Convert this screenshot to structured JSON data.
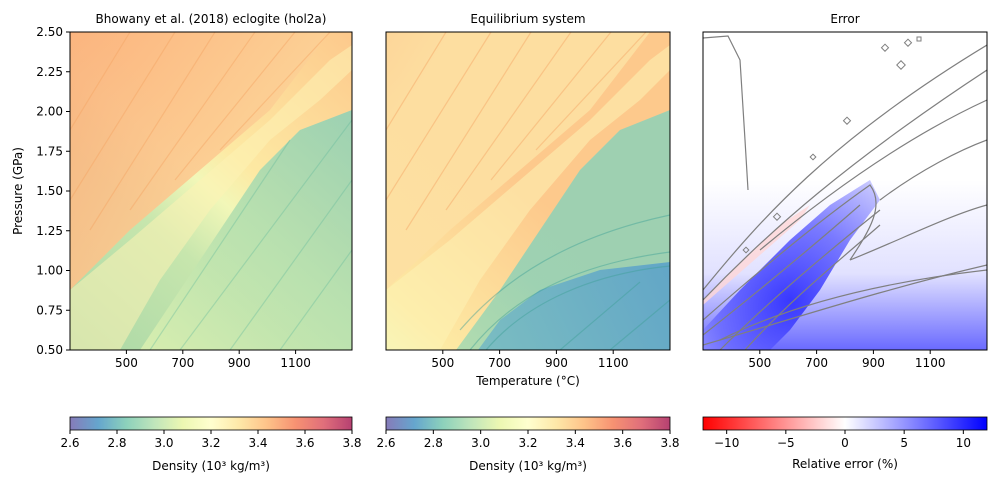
{
  "colors": {
    "density_stops": [
      "#5e4fa2",
      "#3288bd",
      "#66c2a5",
      "#abdda4",
      "#e6f598",
      "#ffffbf",
      "#fee08b",
      "#fdae61",
      "#f46d43",
      "#d53e4f",
      "#9e0142"
    ],
    "error_stops": [
      "#ff0000",
      "#ffffff",
      "#0000ff"
    ],
    "contour_line": "#7f7f7f"
  },
  "chart_data": [
    {
      "type": "heatmap",
      "title": "Bhowany et al. (2018) eclogite (hol2a)",
      "xlabel": "",
      "ylabel": "Pressure (GPa)",
      "xlim": [
        300,
        1300
      ],
      "ylim": [
        0.5,
        2.5
      ],
      "xticks": [
        "500",
        "700",
        "900",
        "1100"
      ],
      "yticks": [
        "0.50",
        "0.75",
        "1.00",
        "1.25",
        "1.50",
        "1.75",
        "2.00",
        "2.25",
        "2.50"
      ],
      "colorbar": {
        "label": "Density (10³ kg/m³)",
        "range": [
          2.6,
          3.8
        ],
        "ticks": [
          "2.6",
          "2.8",
          "3.0",
          "3.2",
          "3.4",
          "3.6",
          "3.8"
        ]
      }
    },
    {
      "type": "heatmap",
      "title": "Equilibrium system",
      "xlabel": "Temperature (°C)",
      "ylabel": "",
      "xlim": [
        300,
        1300
      ],
      "ylim": [
        0.5,
        2.5
      ],
      "xticks": [
        "500",
        "700",
        "900",
        "1100"
      ],
      "colorbar": {
        "label": "Density (10³ kg/m³)",
        "range": [
          2.6,
          3.8
        ],
        "ticks": [
          "2.6",
          "2.8",
          "3.0",
          "3.2",
          "3.4",
          "3.6",
          "3.8"
        ]
      }
    },
    {
      "type": "heatmap",
      "title": "Error",
      "xlabel": "",
      "ylabel": "",
      "xlim": [
        300,
        1300
      ],
      "ylim": [
        0.5,
        2.5
      ],
      "xticks": [
        "500",
        "700",
        "900",
        "1100"
      ],
      "colorbar": {
        "label": "Relative error (%)",
        "range": [
          -12,
          12
        ],
        "ticks": [
          "−10",
          "−5",
          "0",
          "5",
          "10"
        ]
      }
    }
  ]
}
